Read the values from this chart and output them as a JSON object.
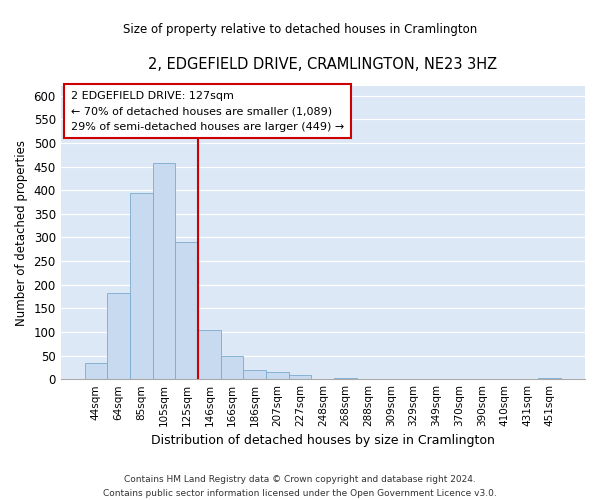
{
  "title": "2, EDGEFIELD DRIVE, CRAMLINGTON, NE23 3HZ",
  "subtitle": "Size of property relative to detached houses in Cramlington",
  "xlabel": "Distribution of detached houses by size in Cramlington",
  "ylabel": "Number of detached properties",
  "bar_labels": [
    "44sqm",
    "64sqm",
    "85sqm",
    "105sqm",
    "125sqm",
    "146sqm",
    "166sqm",
    "186sqm",
    "207sqm",
    "227sqm",
    "248sqm",
    "268sqm",
    "288sqm",
    "309sqm",
    "329sqm",
    "349sqm",
    "370sqm",
    "390sqm",
    "410sqm",
    "431sqm",
    "451sqm"
  ],
  "bar_values": [
    35,
    183,
    393,
    458,
    290,
    105,
    48,
    20,
    16,
    8,
    0,
    2,
    0,
    0,
    0,
    0,
    0,
    0,
    0,
    0,
    2
  ],
  "bar_color": "#c8daf0",
  "bar_edge_color": "#7aabcf",
  "vline_x_idx": 4,
  "vline_color": "#cc0000",
  "ylim": [
    0,
    620
  ],
  "yticks": [
    0,
    50,
    100,
    150,
    200,
    250,
    300,
    350,
    400,
    450,
    500,
    550,
    600
  ],
  "annotation_title": "2 EDGEFIELD DRIVE: 127sqm",
  "annotation_line1": "← 70% of detached houses are smaller (1,089)",
  "annotation_line2": "29% of semi-detached houses are larger (449) →",
  "annotation_box_color": "#ffffff",
  "annotation_box_edge": "#cc0000",
  "footer_line1": "Contains HM Land Registry data © Crown copyright and database right 2024.",
  "footer_line2": "Contains public sector information licensed under the Open Government Licence v3.0.",
  "bg_color": "#ffffff",
  "plot_bg_color": "#dce8f5"
}
